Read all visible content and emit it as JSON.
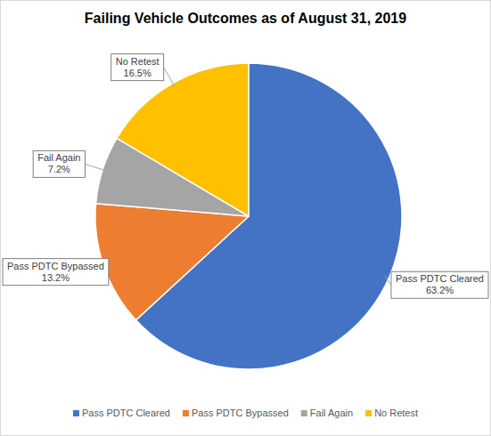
{
  "chart_data": {
    "type": "pie",
    "title": "Failing Vehicle Outcomes as of August 31, 2019",
    "categories": [
      "Pass PDTC Cleared",
      "Pass PDTC Bypassed",
      "Fail Again",
      "No Retest"
    ],
    "values": [
      63.2,
      13.2,
      7.2,
      16.5
    ],
    "value_labels": [
      "63.2%",
      "13.2%",
      "7.2%",
      "16.5%"
    ],
    "colors": [
      "#4472c4",
      "#ed7d31",
      "#a5a5a5",
      "#ffc000"
    ],
    "data_labels": true,
    "legend": "bottom"
  }
}
